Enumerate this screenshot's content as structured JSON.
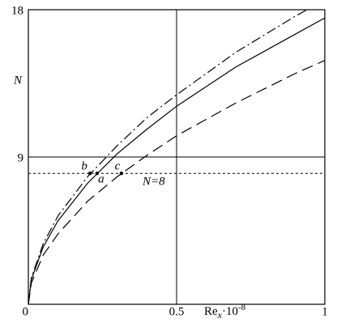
{
  "chart_data": {
    "type": "line",
    "ylabel": "N",
    "xlabel": {
      "base": "Re",
      "sub": "x",
      "mid": "·10",
      "sup": "-8"
    },
    "xlim": [
      0,
      1
    ],
    "ylim": [
      0,
      18
    ],
    "xticks": [
      0,
      0.5,
      1
    ],
    "yticks": [
      9,
      18
    ],
    "grid": true,
    "series": [
      {
        "style": "solid",
        "color": "#000000",
        "x": [
          0,
          0.01,
          0.05,
          0.1,
          0.2,
          0.3,
          0.4,
          0.5,
          0.6,
          0.7,
          0.8,
          0.9,
          1
        ],
        "values": [
          0,
          1.5,
          3.5,
          5.1,
          7.4,
          9.2,
          10.7,
          12.1,
          13.3,
          14.5,
          15.5,
          16.5,
          17.5
        ]
      },
      {
        "style": "dashdot",
        "color": "#000000",
        "x": [
          0,
          0.01,
          0.05,
          0.1,
          0.2,
          0.3,
          0.4,
          0.5,
          0.6,
          0.7,
          0.8,
          0.9,
          0.94
        ],
        "values": [
          0,
          1.6,
          3.7,
          5.4,
          7.8,
          9.7,
          11.4,
          12.8,
          14.1,
          15.4,
          16.5,
          17.6,
          18
        ]
      },
      {
        "style": "dashed",
        "color": "#000000",
        "x": [
          0,
          0.01,
          0.05,
          0.1,
          0.2,
          0.3,
          0.4,
          0.5,
          0.6,
          0.7,
          0.8,
          0.9,
          1
        ],
        "values": [
          0,
          1.3,
          3.0,
          4.3,
          6.3,
          7.8,
          9.1,
          10.3,
          11.3,
          12.3,
          13.2,
          14.1,
          14.9
        ]
      }
    ],
    "hline": {
      "value": 8,
      "label": "N=8"
    },
    "points": [
      {
        "label": "b",
        "x": 0.208,
        "y": 8
      },
      {
        "label": "a",
        "x": 0.232,
        "y": 8
      },
      {
        "label": "c",
        "x": 0.314,
        "y": 8
      }
    ]
  }
}
